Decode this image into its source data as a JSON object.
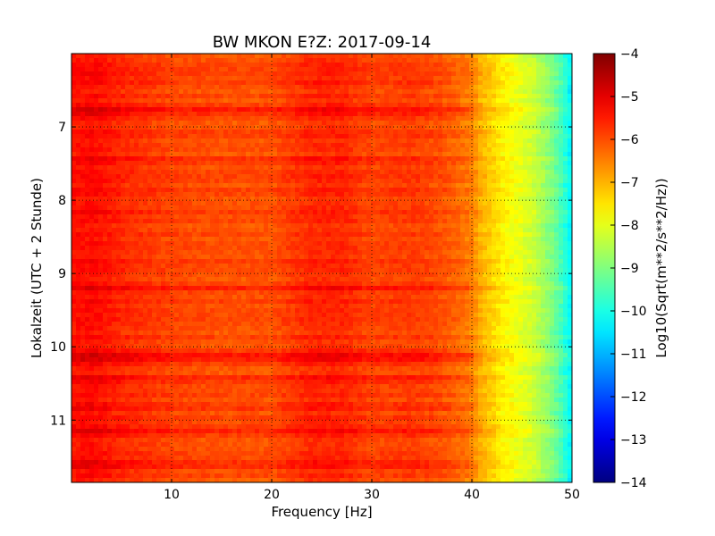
{
  "chart_data": {
    "type": "heatmap",
    "title": "BW MKON E?Z: 2017-09-14",
    "xlabel": "Frequency [Hz]",
    "ylabel": "Lokalzeit (UTC + 2 Stunde)",
    "xlim": [
      0,
      50
    ],
    "ylim": [
      6.0,
      11.85
    ],
    "y_inverted": true,
    "x_ticks": [
      10,
      20,
      30,
      40,
      50
    ],
    "y_ticks": [
      7,
      8,
      9,
      10,
      11
    ],
    "grid": true,
    "colormap": "jet",
    "colorbar": {
      "label": "Log10(Sqrt(m**2/s**2/Hz))",
      "range": [
        -14,
        -4
      ],
      "ticks": [
        -4,
        -5,
        -6,
        -7,
        -8,
        -9,
        -10,
        -11,
        -12,
        -13,
        -14
      ]
    },
    "frequency_profile": {
      "frequency_hz": [
        0,
        2,
        5,
        10,
        15,
        20,
        24,
        27,
        30,
        34,
        37,
        39,
        40,
        41,
        42,
        43,
        44,
        45,
        46,
        47,
        48,
        49,
        50
      ],
      "log10_amplitude": [
        -5.4,
        -5.3,
        -5.6,
        -5.9,
        -6.0,
        -6.0,
        -5.6,
        -5.6,
        -5.9,
        -5.8,
        -6.0,
        -6.3,
        -6.5,
        -7.0,
        -7.3,
        -7.6,
        -7.8,
        -8.0,
        -8.2,
        -8.6,
        -9.0,
        -9.6,
        -10.4
      ]
    },
    "time_bands": [
      {
        "time": 6.8,
        "delta": 0.35
      },
      {
        "time": 7.45,
        "delta": 0.25
      },
      {
        "time": 9.2,
        "delta": 0.3
      },
      {
        "time": 10.13,
        "delta": 0.45
      },
      {
        "time": 10.45,
        "delta": 0.3
      },
      {
        "time": 10.85,
        "delta": 0.35
      },
      {
        "time": 11.15,
        "delta": 0.3
      },
      {
        "time": 11.6,
        "delta": 0.3
      }
    ]
  }
}
